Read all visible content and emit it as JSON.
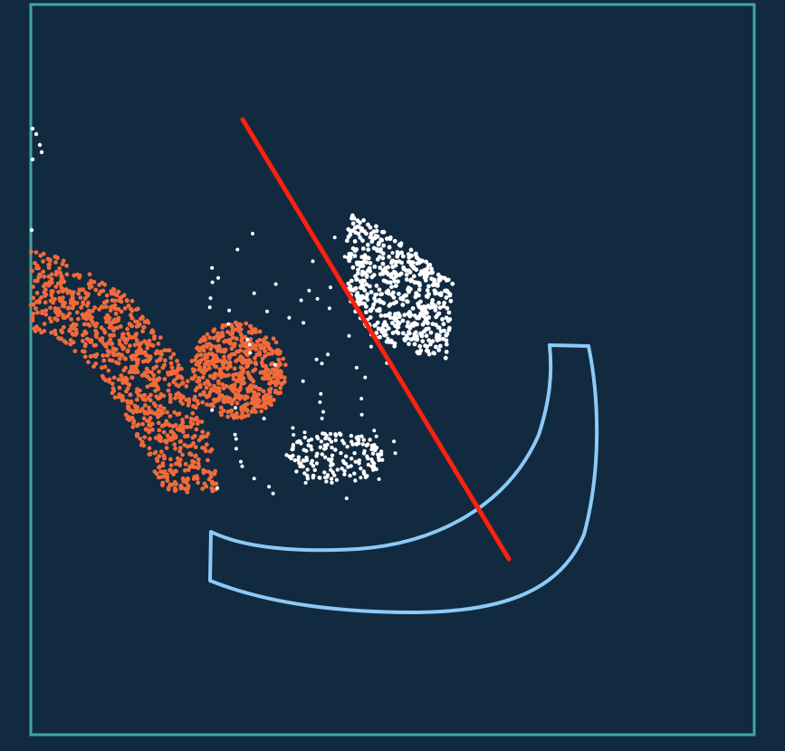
{
  "scene": {
    "background_color": "#112a40",
    "border_color": "#3fa89c",
    "orange_color": "#f26a3a",
    "white_color": "#ffffff",
    "line_color": "#ff2010",
    "outline_color": "#8ccaf7"
  }
}
